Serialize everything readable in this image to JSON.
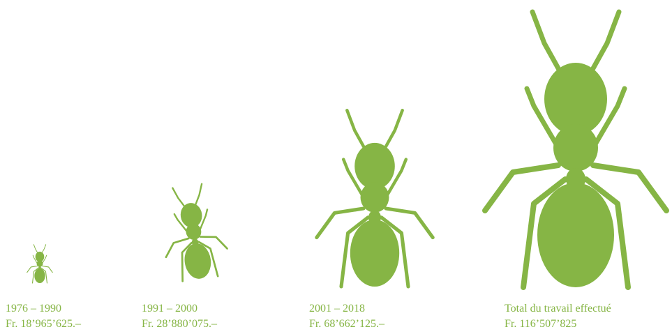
{
  "items": [
    {
      "period": "1976 – 1990",
      "amount": "Fr. 18’965’625.–"
    },
    {
      "period": "1991 – 2000",
      "amount": "Fr. 28’880’075.–"
    },
    {
      "period": "2001 – 2018",
      "amount": "Fr. 68’662’125.–"
    },
    {
      "period": "Total du travail effectué",
      "amount": "Fr. 116’507’825"
    }
  ]
}
